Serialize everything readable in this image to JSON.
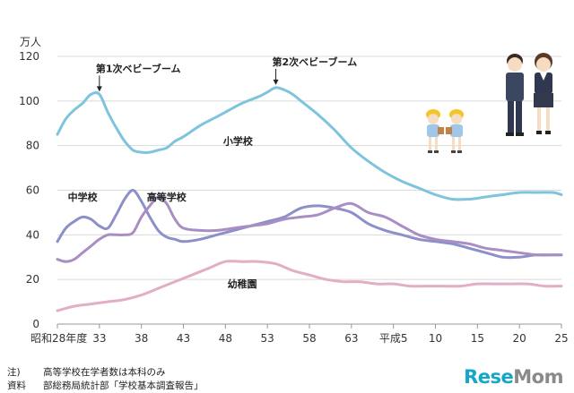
{
  "chart_data": {
    "type": "line",
    "ylabel": "万人",
    "ylim": [
      0,
      120
    ],
    "yticks": [
      0,
      20,
      40,
      60,
      80,
      100,
      120
    ],
    "xlim": [
      1953,
      2013
    ],
    "xticks": [
      {
        "year": 1953,
        "label": "昭和28年度"
      },
      {
        "year": 1958,
        "label": "33"
      },
      {
        "year": 1963,
        "label": "38"
      },
      {
        "year": 1968,
        "label": "43"
      },
      {
        "year": 1973,
        "label": "48"
      },
      {
        "year": 1978,
        "label": "53"
      },
      {
        "year": 1983,
        "label": "58"
      },
      {
        "year": 1988,
        "label": "63"
      },
      {
        "year": 1993,
        "label": "平成5"
      },
      {
        "year": 1998,
        "label": "10"
      },
      {
        "year": 2003,
        "label": "15"
      },
      {
        "year": 2008,
        "label": "20"
      },
      {
        "year": 2013,
        "label": "25"
      }
    ],
    "series": [
      {
        "name": "小学校",
        "color": "#7ec4dd",
        "x": [
          1953,
          1954,
          1955,
          1956,
          1957,
          1958,
          1959,
          1960,
          1961,
          1962,
          1963,
          1964,
          1965,
          1966,
          1967,
          1968,
          1970,
          1972,
          1973,
          1975,
          1977,
          1978,
          1979,
          1980,
          1981,
          1982,
          1984,
          1986,
          1988,
          1990,
          1992,
          1994,
          1996,
          1998,
          2000,
          2002,
          2004,
          2006,
          2008,
          2010,
          2012,
          2013
        ],
        "y": [
          85,
          92,
          96,
          99,
          103,
          103,
          95,
          88,
          82,
          78,
          77,
          77,
          78,
          79,
          82,
          84,
          89,
          93,
          95,
          99,
          102,
          104,
          106,
          105,
          103,
          100,
          94,
          87,
          79,
          73,
          68,
          64,
          61,
          58,
          56,
          56,
          57,
          58,
          59,
          59,
          59,
          58
        ]
      },
      {
        "name": "中学校",
        "color": "#8d8fc9",
        "x": [
          1953,
          1954,
          1955,
          1956,
          1957,
          1958,
          1959,
          1960,
          1961,
          1962,
          1963,
          1964,
          1965,
          1966,
          1967,
          1968,
          1970,
          1972,
          1974,
          1976,
          1978,
          1980,
          1982,
          1984,
          1986,
          1988,
          1990,
          1992,
          1994,
          1996,
          1998,
          2000,
          2002,
          2004,
          2006,
          2008,
          2010,
          2012,
          2013
        ],
        "y": [
          37,
          43,
          46,
          48,
          47,
          44,
          43,
          49,
          56,
          60,
          55,
          48,
          42,
          39,
          38,
          37,
          38,
          40,
          42,
          44,
          46,
          48,
          52,
          53,
          52,
          50,
          45,
          42,
          40,
          38,
          37,
          36,
          34,
          32,
          30,
          30,
          31,
          31,
          31
        ]
      },
      {
        "name": "高等学校",
        "color": "#a98ec4",
        "x": [
          1953,
          1954,
          1955,
          1956,
          1957,
          1958,
          1959,
          1960,
          1961,
          1962,
          1963,
          1964,
          1965,
          1966,
          1967,
          1968,
          1970,
          1972,
          1974,
          1976,
          1978,
          1980,
          1982,
          1984,
          1986,
          1988,
          1990,
          1992,
          1994,
          1996,
          1998,
          2000,
          2002,
          2004,
          2006,
          2008,
          2010,
          2012,
          2013
        ],
        "y": [
          29,
          28,
          29,
          32,
          35,
          38,
          40,
          40,
          40,
          41,
          48,
          53,
          57,
          54,
          47,
          43,
          42,
          42,
          43,
          44,
          45,
          47,
          48,
          49,
          52,
          54,
          50,
          48,
          44,
          40,
          38,
          37,
          36,
          34,
          33,
          32,
          31,
          31,
          31
        ]
      },
      {
        "name": "幼稚園",
        "color": "#e2aec6",
        "x": [
          1953,
          1955,
          1957,
          1959,
          1961,
          1963,
          1965,
          1967,
          1969,
          1971,
          1973,
          1975,
          1977,
          1979,
          1981,
          1983,
          1985,
          1987,
          1989,
          1991,
          1993,
          1995,
          1997,
          1999,
          2001,
          2003,
          2005,
          2007,
          2009,
          2011,
          2013
        ],
        "y": [
          6,
          8,
          9,
          10,
          11,
          13,
          16,
          19,
          22,
          25,
          28,
          28,
          28,
          27,
          24,
          22,
          20,
          19,
          19,
          18,
          18,
          17,
          17,
          17,
          17,
          18,
          18,
          18,
          18,
          17,
          17
        ]
      }
    ],
    "annotations": [
      {
        "text": "第1次ベビーブーム",
        "x": 1958,
        "y": 103
      },
      {
        "text": "第2次ベビーブーム",
        "x": 1979,
        "y": 106
      }
    ],
    "series_labels": [
      {
        "text": "小学校",
        "x": 1974.5,
        "y": 82
      },
      {
        "text": "中学校",
        "x": 1956,
        "y": 57
      },
      {
        "text": "高等学校",
        "x": 1966,
        "y": 57
      },
      {
        "text": "幼稚園",
        "x": 1975,
        "y": 18
      }
    ]
  },
  "notes": [
    {
      "key": "注)",
      "text": "高等学校在学者数は本科のみ"
    },
    {
      "key": "資料",
      "text": "部総務局統計部「学校基本調査報告」"
    }
  ],
  "logo": {
    "part1": "Rese",
    "part2": "Mom"
  }
}
